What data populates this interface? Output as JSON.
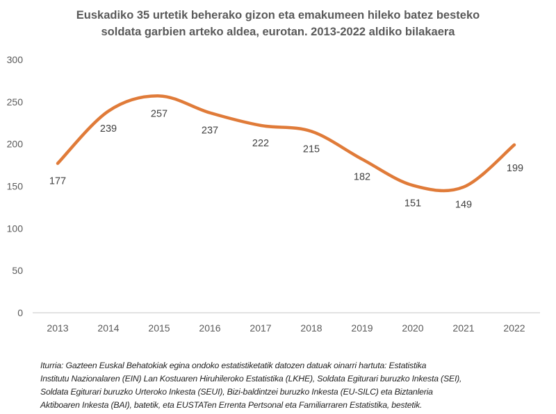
{
  "chart_data": {
    "type": "line",
    "title_lines": [
      "Euskadiko 35 urtetik beherako gizon eta emakumeen hileko batez besteko",
      "soldata garbien arteko aldea, eurotan. 2013-2022 aldiko bilakaera"
    ],
    "categories": [
      "2013",
      "2014",
      "2015",
      "2016",
      "2017",
      "2018",
      "2019",
      "2020",
      "2021",
      "2022"
    ],
    "values": [
      177,
      239,
      257,
      237,
      222,
      215,
      182,
      151,
      149,
      199
    ],
    "data_labels": [
      "177",
      "239",
      "257",
      "237",
      "222",
      "215",
      "182",
      "151",
      "149",
      "199"
    ],
    "ylim": [
      0,
      300
    ],
    "yticks": [
      "0",
      "50",
      "100",
      "150",
      "200",
      "250",
      "300"
    ],
    "smooth": true,
    "grid": false,
    "line_color": "#E07B39",
    "xlabel": "",
    "ylabel": ""
  },
  "source_lines": [
    "Iturria: Gazteen Euskal Behatokiak egina ondoko estatistiketatik  datozen datuak oinarri hartuta: Estatistika",
    "Institutu Nazionalaren (EIN) Lan Kostuaren Hiruhileroko Estatistika (LKHE), Soldata Egiturari buruzko Inkesta (SEI),",
    "Soldata Egiturari buruzko Urteroko Inkesta (SEUI), Bizi-baldintzei buruzko Inkesta (EU-SILC) eta Biztanleria",
    "Aktiboaren Inkesta (BAI), batetik, eta EUSTATen Errenta Pertsonal eta Familiarraren Estatistika, bestetik."
  ]
}
